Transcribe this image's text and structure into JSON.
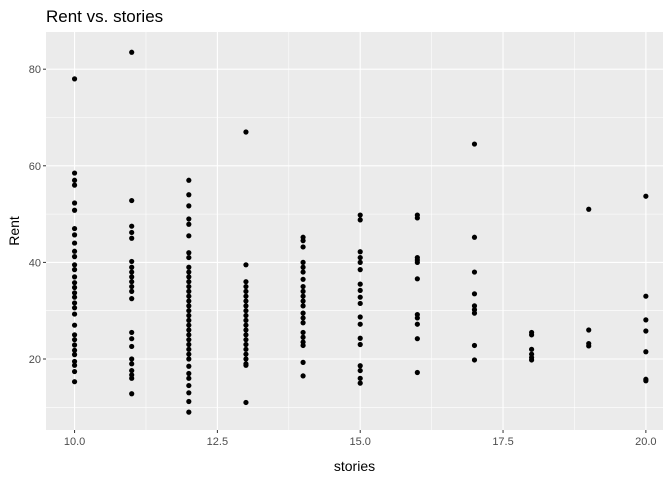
{
  "chart_data": {
    "type": "scatter",
    "title": "Rent vs. stories",
    "xlabel": "stories",
    "ylabel": "Rent",
    "xlim": [
      9.5,
      20.3
    ],
    "ylim": [
      5.3,
      87.7
    ],
    "x_ticks": [
      10.0,
      12.5,
      15.0,
      17.5,
      20.0
    ],
    "x_tick_labels": [
      "10.0",
      "12.5",
      "15.0",
      "17.5",
      "20.0"
    ],
    "y_ticks": [
      20,
      40,
      60,
      80
    ],
    "y_tick_labels": [
      "20",
      "40",
      "60",
      "80"
    ],
    "grid": true,
    "background": "#ebebeb",
    "grid_color": "#ffffff",
    "point_color": "#000000",
    "points": [
      [
        10,
        78.0
      ],
      [
        10,
        58.5
      ],
      [
        10,
        57.0
      ],
      [
        10,
        56.0
      ],
      [
        10,
        52.3
      ],
      [
        10,
        50.8
      ],
      [
        10,
        47.0
      ],
      [
        10,
        45.7
      ],
      [
        10,
        44.0
      ],
      [
        10,
        42.3
      ],
      [
        10,
        41.2
      ],
      [
        10,
        39.5
      ],
      [
        10,
        38.5
      ],
      [
        10,
        37.0
      ],
      [
        10,
        35.8
      ],
      [
        10,
        34.8
      ],
      [
        10,
        33.7
      ],
      [
        10,
        32.8
      ],
      [
        10,
        31.6
      ],
      [
        10,
        30.6
      ],
      [
        10,
        29.3
      ],
      [
        10,
        27.0
      ],
      [
        10,
        25.0
      ],
      [
        10,
        24.0
      ],
      [
        10,
        22.9
      ],
      [
        10,
        21.8
      ],
      [
        10,
        20.9
      ],
      [
        10,
        19.5
      ],
      [
        10,
        18.7
      ],
      [
        10,
        17.4
      ],
      [
        10,
        15.3
      ],
      [
        11,
        83.5
      ],
      [
        11,
        52.8
      ],
      [
        11,
        47.5
      ],
      [
        11,
        46.2
      ],
      [
        11,
        45.0
      ],
      [
        11,
        40.2
      ],
      [
        11,
        39.0
      ],
      [
        11,
        38.0
      ],
      [
        11,
        37.0
      ],
      [
        11,
        36.0
      ],
      [
        11,
        35.0
      ],
      [
        11,
        34.0
      ],
      [
        11,
        32.5
      ],
      [
        11,
        25.5
      ],
      [
        11,
        24.2
      ],
      [
        11,
        22.6
      ],
      [
        11,
        20.0
      ],
      [
        11,
        19.0
      ],
      [
        11,
        17.6
      ],
      [
        11,
        16.7
      ],
      [
        11,
        16.0
      ],
      [
        11,
        12.8
      ],
      [
        12,
        57.0
      ],
      [
        12,
        54.0
      ],
      [
        12,
        51.7
      ],
      [
        12,
        49.0
      ],
      [
        12,
        47.9
      ],
      [
        12,
        45.5
      ],
      [
        12,
        42.0
      ],
      [
        12,
        41.0
      ],
      [
        12,
        39.0
      ],
      [
        12,
        38.0
      ],
      [
        12,
        37.0
      ],
      [
        12,
        36.0
      ],
      [
        12,
        35.0
      ],
      [
        12,
        34.0
      ],
      [
        12,
        33.0
      ],
      [
        12,
        32.0
      ],
      [
        12,
        31.0
      ],
      [
        12,
        30.0
      ],
      [
        12,
        29.0
      ],
      [
        12,
        28.0
      ],
      [
        12,
        27.0
      ],
      [
        12,
        26.0
      ],
      [
        12,
        25.0
      ],
      [
        12,
        24.0
      ],
      [
        12,
        23.0
      ],
      [
        12,
        22.0
      ],
      [
        12,
        21.0
      ],
      [
        12,
        20.0
      ],
      [
        12,
        18.5
      ],
      [
        12,
        17.0
      ],
      [
        12,
        16.0
      ],
      [
        12,
        14.5
      ],
      [
        12,
        13.0
      ],
      [
        12,
        11.2
      ],
      [
        12,
        9.0
      ],
      [
        13,
        67.0
      ],
      [
        13,
        39.5
      ],
      [
        13,
        36.0
      ],
      [
        13,
        35.0
      ],
      [
        13,
        34.0
      ],
      [
        13,
        33.0
      ],
      [
        13,
        32.0
      ],
      [
        13,
        31.0
      ],
      [
        13,
        30.0
      ],
      [
        13,
        29.0
      ],
      [
        13,
        28.0
      ],
      [
        13,
        27.0
      ],
      [
        13,
        26.0
      ],
      [
        13,
        25.0
      ],
      [
        13,
        24.0
      ],
      [
        13,
        23.0
      ],
      [
        13,
        22.0
      ],
      [
        13,
        21.0
      ],
      [
        13,
        20.0
      ],
      [
        13,
        19.0
      ],
      [
        13,
        18.7
      ],
      [
        13,
        11.0
      ],
      [
        14,
        45.2
      ],
      [
        14,
        44.5
      ],
      [
        14,
        43.2
      ],
      [
        14,
        40.0
      ],
      [
        14,
        39.0
      ],
      [
        14,
        38.0
      ],
      [
        14,
        36.5
      ],
      [
        14,
        35.0
      ],
      [
        14,
        34.0
      ],
      [
        14,
        33.0
      ],
      [
        14,
        32.0
      ],
      [
        14,
        31.0
      ],
      [
        14,
        29.5
      ],
      [
        14,
        28.5
      ],
      [
        14,
        27.5
      ],
      [
        14,
        25.5
      ],
      [
        14,
        24.5
      ],
      [
        14,
        23.5
      ],
      [
        14,
        22.8
      ],
      [
        14,
        19.3
      ],
      [
        14,
        16.5
      ],
      [
        15,
        49.8
      ],
      [
        15,
        48.8
      ],
      [
        15,
        42.2
      ],
      [
        15,
        41.0
      ],
      [
        15,
        40.0
      ],
      [
        15,
        38.5
      ],
      [
        15,
        35.5
      ],
      [
        15,
        34.2
      ],
      [
        15,
        32.8
      ],
      [
        15,
        31.5
      ],
      [
        15,
        28.7
      ],
      [
        15,
        27.2
      ],
      [
        15,
        24.3
      ],
      [
        15,
        23.0
      ],
      [
        15,
        18.6
      ],
      [
        15,
        17.6
      ],
      [
        15,
        16.0
      ],
      [
        15,
        15.0
      ],
      [
        16,
        49.8
      ],
      [
        16,
        49.2
      ],
      [
        16,
        41.0
      ],
      [
        16,
        40.5
      ],
      [
        16,
        40.0
      ],
      [
        16,
        36.6
      ],
      [
        16,
        29.2
      ],
      [
        16,
        28.5
      ],
      [
        16,
        27.2
      ],
      [
        16,
        24.2
      ],
      [
        16,
        17.2
      ],
      [
        17,
        64.5
      ],
      [
        17,
        45.2
      ],
      [
        17,
        38.0
      ],
      [
        17,
        33.5
      ],
      [
        17,
        31.0
      ],
      [
        17,
        30.2
      ],
      [
        17,
        29.5
      ],
      [
        17,
        22.8
      ],
      [
        17,
        19.8
      ],
      [
        18,
        25.5
      ],
      [
        18,
        25.0
      ],
      [
        18,
        22.0
      ],
      [
        18,
        21.0
      ],
      [
        18,
        20.3
      ],
      [
        18,
        19.8
      ],
      [
        19,
        51.0
      ],
      [
        19,
        26.0
      ],
      [
        19,
        23.2
      ],
      [
        19,
        22.7
      ],
      [
        20,
        53.7
      ],
      [
        20,
        33.0
      ],
      [
        20,
        28.1
      ],
      [
        20,
        25.8
      ],
      [
        20,
        21.5
      ],
      [
        20,
        15.8
      ],
      [
        20,
        15.5
      ]
    ]
  }
}
